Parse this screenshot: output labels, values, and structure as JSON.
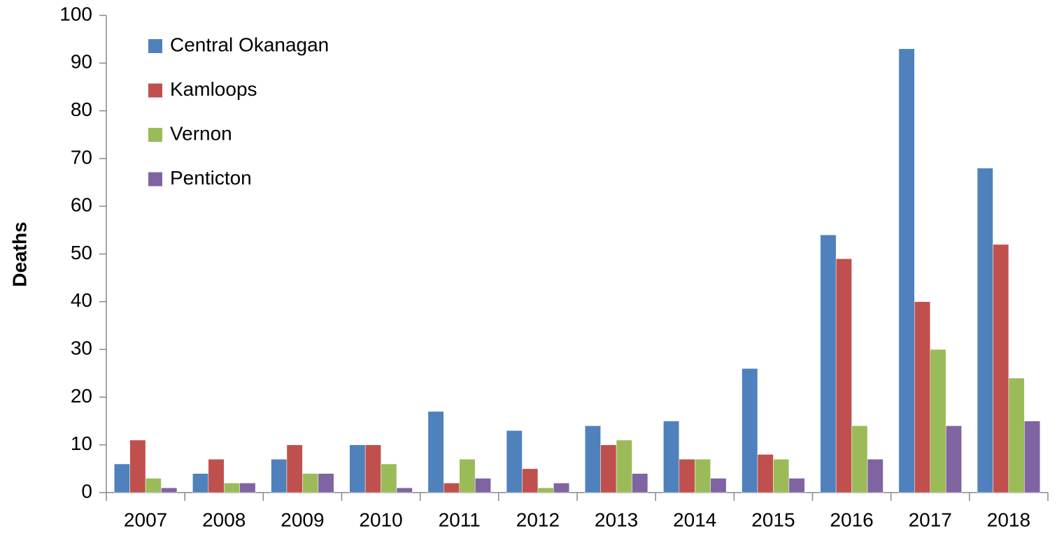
{
  "chart_data": {
    "type": "bar",
    "y_label": "Deaths",
    "categories": [
      "2007",
      "2008",
      "2009",
      "2010",
      "2011",
      "2012",
      "2013",
      "2014",
      "2015",
      "2016",
      "2017",
      "2018"
    ],
    "series": [
      {
        "name": "Central Okanagan",
        "color": "#4f81bd",
        "values": [
          6,
          4,
          7,
          10,
          17,
          13,
          14,
          15,
          26,
          54,
          93,
          68
        ]
      },
      {
        "name": "Kamloops",
        "color": "#c0504d",
        "values": [
          11,
          7,
          10,
          10,
          2,
          5,
          10,
          7,
          8,
          49,
          40,
          52
        ]
      },
      {
        "name": "Vernon",
        "color": "#9bbb59",
        "values": [
          3,
          2,
          4,
          6,
          7,
          1,
          11,
          7,
          7,
          14,
          30,
          24
        ]
      },
      {
        "name": "Penticton",
        "color": "#8064a2",
        "values": [
          1,
          2,
          4,
          1,
          3,
          2,
          4,
          3,
          3,
          7,
          14,
          15
        ]
      }
    ],
    "ylim": [
      0,
      100
    ],
    "yticks": [
      0,
      10,
      20,
      30,
      40,
      50,
      60,
      70,
      80,
      90,
      100
    ],
    "grid": false,
    "legend": "top-left"
  }
}
